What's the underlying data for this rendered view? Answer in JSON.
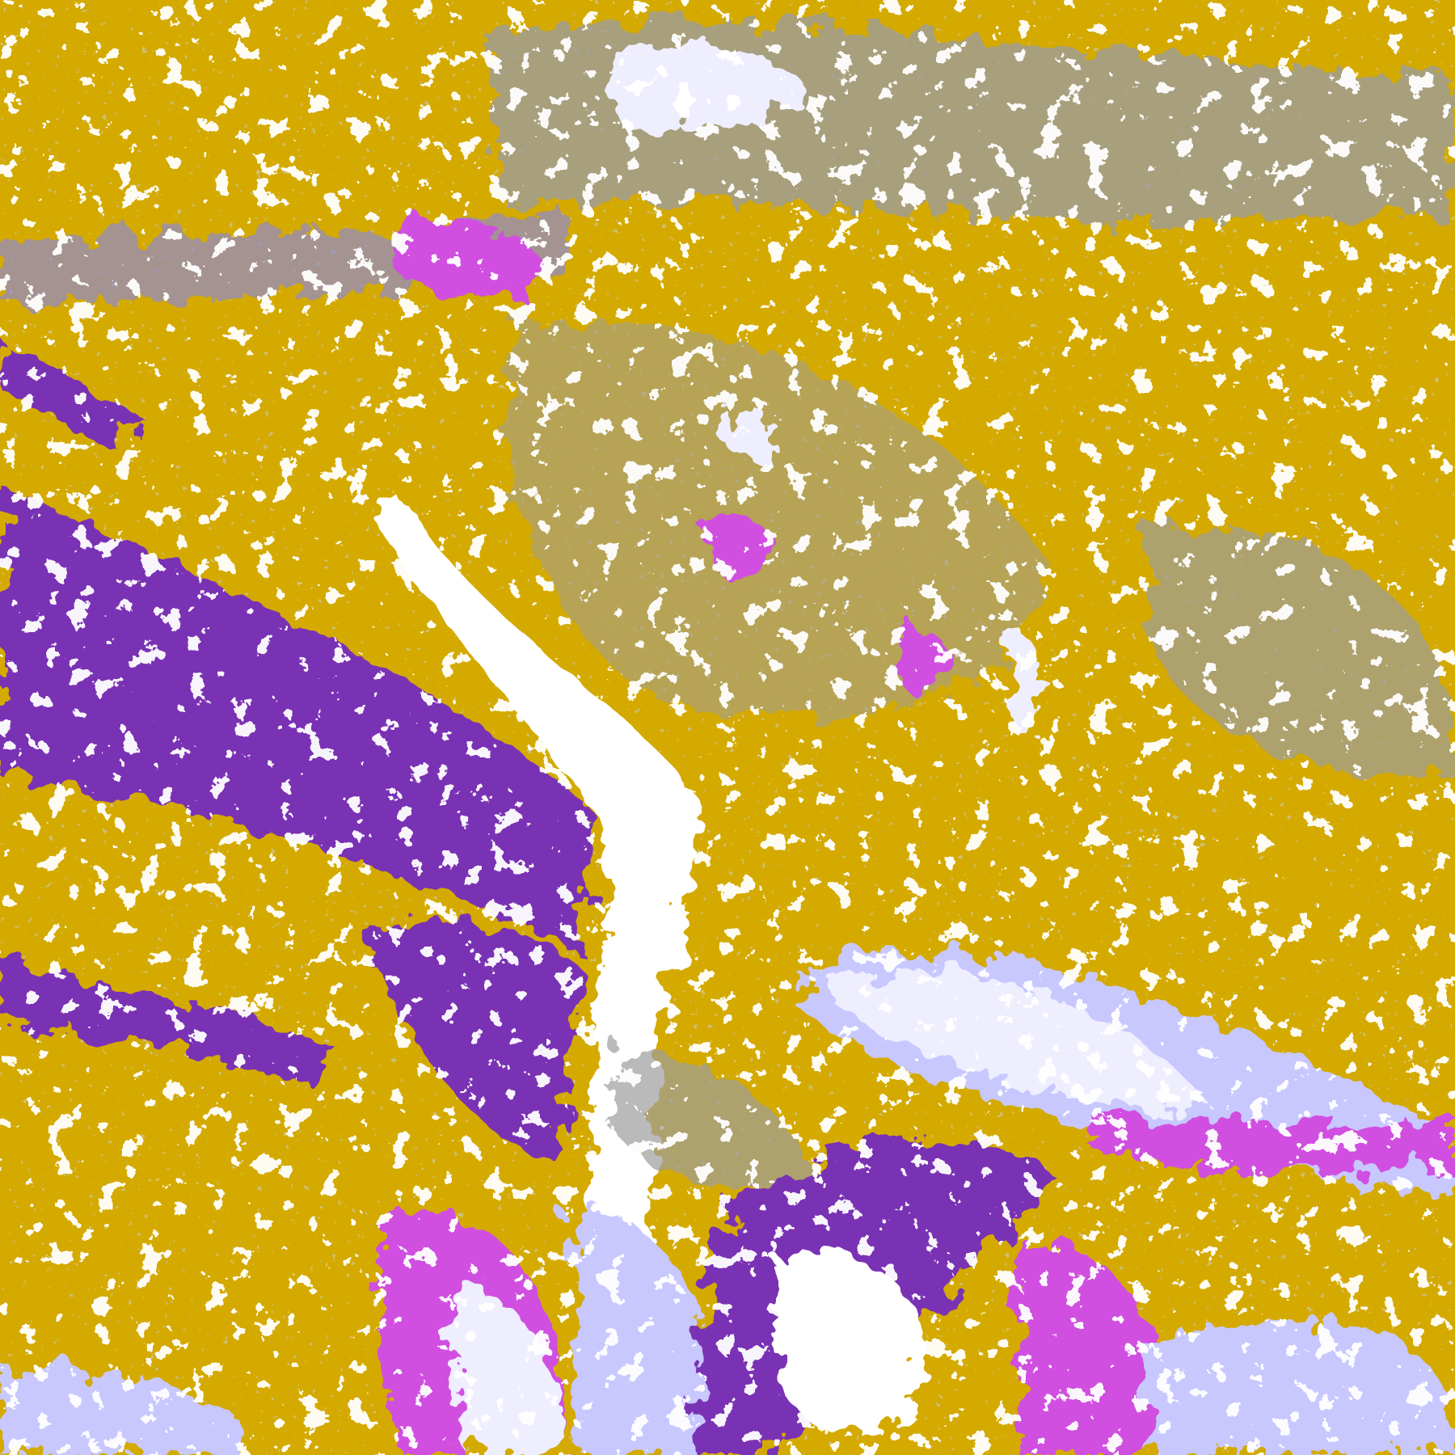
{
  "image": {
    "kind": "false-color classified satellite imagery",
    "palette": {
      "gold": "#D4AA00",
      "dark_gold": "#C08E00",
      "purple": "#7A30B4",
      "magenta": "#D050E0",
      "gray": "#9C9C9C",
      "blue": "#8484F0",
      "lavender": "#C8C8FF",
      "pale": "#EEEEFF",
      "white": "#FFFFFF"
    }
  }
}
